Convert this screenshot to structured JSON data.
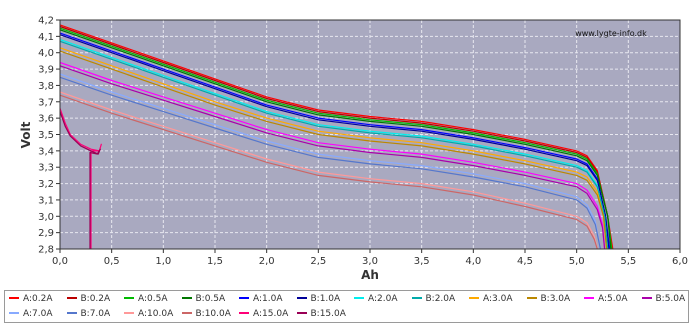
{
  "chart_data": {
    "type": "line",
    "title": "",
    "watermark": "www.lygte-info.dk",
    "xlabel": "Ah",
    "ylabel": "Volt",
    "xlim": [
      0.0,
      6.0
    ],
    "ylim": [
      2.8,
      4.2
    ],
    "x_ticks": [
      "0,0",
      "0,5",
      "1,0",
      "1,5",
      "2,0",
      "2,5",
      "3,0",
      "3,5",
      "4,0",
      "4,5",
      "5,0",
      "5,5",
      "6,0"
    ],
    "y_ticks": [
      "2,8",
      "2,9",
      "3,0",
      "3,1",
      "3,2",
      "3,3",
      "3,4",
      "3,5",
      "3,6",
      "3,7",
      "3,8",
      "3,9",
      "4,0",
      "4,1",
      "4,2"
    ],
    "grid": true,
    "legend_position": "bottom",
    "series": [
      {
        "name": "A:0.2A",
        "color": "#ff0000",
        "points": [
          [
            0,
            4.17
          ],
          [
            0.5,
            4.06
          ],
          [
            1.0,
            3.95
          ],
          [
            1.5,
            3.84
          ],
          [
            2.0,
            3.73
          ],
          [
            2.5,
            3.65
          ],
          [
            3.0,
            3.61
          ],
          [
            3.5,
            3.58
          ],
          [
            4.0,
            3.53
          ],
          [
            4.5,
            3.47
          ],
          [
            5.0,
            3.4
          ],
          [
            5.1,
            3.37
          ],
          [
            5.2,
            3.28
          ],
          [
            5.3,
            3.0
          ],
          [
            5.35,
            2.8
          ]
        ]
      },
      {
        "name": "B:0.2A",
        "color": "#bb0000",
        "points": [
          [
            0,
            4.16
          ],
          [
            0.5,
            4.05
          ],
          [
            1.0,
            3.94
          ],
          [
            1.5,
            3.83
          ],
          [
            2.0,
            3.72
          ],
          [
            2.5,
            3.64
          ],
          [
            3.0,
            3.6
          ],
          [
            3.5,
            3.57
          ],
          [
            4.0,
            3.52
          ],
          [
            4.5,
            3.46
          ],
          [
            5.0,
            3.39
          ],
          [
            5.1,
            3.36
          ],
          [
            5.2,
            3.27
          ],
          [
            5.3,
            3.0
          ],
          [
            5.34,
            2.8
          ]
        ]
      },
      {
        "name": "A:0.5A",
        "color": "#00bb00",
        "points": [
          [
            0,
            4.15
          ],
          [
            0.5,
            4.04
          ],
          [
            1.0,
            3.93
          ],
          [
            1.5,
            3.82
          ],
          [
            2.0,
            3.71
          ],
          [
            2.5,
            3.63
          ],
          [
            3.0,
            3.59
          ],
          [
            3.5,
            3.56
          ],
          [
            4.0,
            3.51
          ],
          [
            4.5,
            3.45
          ],
          [
            5.0,
            3.38
          ],
          [
            5.1,
            3.35
          ],
          [
            5.2,
            3.26
          ],
          [
            5.3,
            3.0
          ],
          [
            5.34,
            2.8
          ]
        ]
      },
      {
        "name": "B:0.5A",
        "color": "#007700",
        "points": [
          [
            0,
            4.14
          ],
          [
            0.5,
            4.03
          ],
          [
            1.0,
            3.92
          ],
          [
            1.5,
            3.81
          ],
          [
            2.0,
            3.7
          ],
          [
            2.5,
            3.62
          ],
          [
            3.0,
            3.58
          ],
          [
            3.5,
            3.55
          ],
          [
            4.0,
            3.5
          ],
          [
            4.5,
            3.44
          ],
          [
            5.0,
            3.37
          ],
          [
            5.1,
            3.34
          ],
          [
            5.2,
            3.25
          ],
          [
            5.3,
            3.0
          ],
          [
            5.33,
            2.8
          ]
        ]
      },
      {
        "name": "A:1.0A",
        "color": "#0000ff",
        "points": [
          [
            0,
            4.12
          ],
          [
            0.5,
            4.01
          ],
          [
            1.0,
            3.9
          ],
          [
            1.5,
            3.79
          ],
          [
            2.0,
            3.68
          ],
          [
            2.5,
            3.6
          ],
          [
            3.0,
            3.56
          ],
          [
            3.5,
            3.53
          ],
          [
            4.0,
            3.48
          ],
          [
            4.5,
            3.42
          ],
          [
            5.0,
            3.35
          ],
          [
            5.1,
            3.32
          ],
          [
            5.2,
            3.23
          ],
          [
            5.28,
            3.0
          ],
          [
            5.32,
            2.8
          ]
        ]
      },
      {
        "name": "B:1.0A",
        "color": "#000099",
        "points": [
          [
            0,
            4.11
          ],
          [
            0.5,
            4.0
          ],
          [
            1.0,
            3.89
          ],
          [
            1.5,
            3.78
          ],
          [
            2.0,
            3.67
          ],
          [
            2.5,
            3.59
          ],
          [
            3.0,
            3.55
          ],
          [
            3.5,
            3.52
          ],
          [
            4.0,
            3.47
          ],
          [
            4.5,
            3.41
          ],
          [
            5.0,
            3.34
          ],
          [
            5.1,
            3.31
          ],
          [
            5.2,
            3.22
          ],
          [
            5.28,
            3.0
          ],
          [
            5.31,
            2.8
          ]
        ]
      },
      {
        "name": "A:2.0A",
        "color": "#00eeee",
        "points": [
          [
            0,
            4.08
          ],
          [
            0.5,
            3.97
          ],
          [
            1.0,
            3.86
          ],
          [
            1.5,
            3.75
          ],
          [
            2.0,
            3.64
          ],
          [
            2.5,
            3.56
          ],
          [
            3.0,
            3.52
          ],
          [
            3.5,
            3.49
          ],
          [
            4.0,
            3.44
          ],
          [
            4.5,
            3.38
          ],
          [
            5.0,
            3.31
          ],
          [
            5.1,
            3.28
          ],
          [
            5.2,
            3.19
          ],
          [
            5.27,
            3.0
          ],
          [
            5.3,
            2.8
          ]
        ]
      },
      {
        "name": "B:2.0A",
        "color": "#00aaaa",
        "points": [
          [
            0,
            4.07
          ],
          [
            0.5,
            3.96
          ],
          [
            1.0,
            3.85
          ],
          [
            1.5,
            3.74
          ],
          [
            2.0,
            3.63
          ],
          [
            2.5,
            3.55
          ],
          [
            3.0,
            3.51
          ],
          [
            3.5,
            3.48
          ],
          [
            4.0,
            3.43
          ],
          [
            4.5,
            3.37
          ],
          [
            5.0,
            3.3
          ],
          [
            5.1,
            3.27
          ],
          [
            5.2,
            3.18
          ],
          [
            5.27,
            3.0
          ],
          [
            5.3,
            2.8
          ]
        ]
      },
      {
        "name": "A:3.0A",
        "color": "#ffaa00",
        "points": [
          [
            0,
            4.03
          ],
          [
            0.5,
            3.92
          ],
          [
            1.0,
            3.81
          ],
          [
            1.5,
            3.7
          ],
          [
            2.0,
            3.6
          ],
          [
            2.5,
            3.52
          ],
          [
            3.0,
            3.48
          ],
          [
            3.5,
            3.45
          ],
          [
            4.0,
            3.4
          ],
          [
            4.5,
            3.34
          ],
          [
            5.0,
            3.27
          ],
          [
            5.1,
            3.24
          ],
          [
            5.2,
            3.15
          ],
          [
            5.26,
            3.0
          ],
          [
            5.29,
            2.8
          ]
        ]
      },
      {
        "name": "B:3.0A",
        "color": "#bb8800",
        "points": [
          [
            0,
            4.01
          ],
          [
            0.5,
            3.9
          ],
          [
            1.0,
            3.79
          ],
          [
            1.5,
            3.68
          ],
          [
            2.0,
            3.58
          ],
          [
            2.5,
            3.5
          ],
          [
            3.0,
            3.46
          ],
          [
            3.5,
            3.43
          ],
          [
            4.0,
            3.38
          ],
          [
            4.5,
            3.32
          ],
          [
            5.0,
            3.25
          ],
          [
            5.1,
            3.22
          ],
          [
            5.2,
            3.13
          ],
          [
            5.26,
            3.0
          ],
          [
            5.29,
            2.8
          ]
        ]
      },
      {
        "name": "A:5.0A",
        "color": "#ff00ff",
        "points": [
          [
            0,
            3.94
          ],
          [
            0.5,
            3.83
          ],
          [
            1.0,
            3.73
          ],
          [
            1.5,
            3.63
          ],
          [
            2.0,
            3.53
          ],
          [
            2.5,
            3.45
          ],
          [
            3.0,
            3.41
          ],
          [
            3.5,
            3.38
          ],
          [
            4.0,
            3.33
          ],
          [
            4.5,
            3.27
          ],
          [
            5.0,
            3.2
          ],
          [
            5.1,
            3.16
          ],
          [
            5.2,
            3.06
          ],
          [
            5.25,
            2.95
          ],
          [
            5.27,
            2.8
          ]
        ]
      },
      {
        "name": "B:5.0A",
        "color": "#aa00aa",
        "points": [
          [
            0,
            3.92
          ],
          [
            0.5,
            3.81
          ],
          [
            1.0,
            3.71
          ],
          [
            1.5,
            3.61
          ],
          [
            2.0,
            3.51
          ],
          [
            2.5,
            3.43
          ],
          [
            3.0,
            3.39
          ],
          [
            3.5,
            3.36
          ],
          [
            4.0,
            3.31
          ],
          [
            4.5,
            3.25
          ],
          [
            5.0,
            3.18
          ],
          [
            5.1,
            3.14
          ],
          [
            5.2,
            3.04
          ],
          [
            5.25,
            2.93
          ],
          [
            5.27,
            2.8
          ]
        ]
      },
      {
        "name": "A:7.0A",
        "color": "#88aaff",
        "points": [
          [
            0,
            3.87
          ],
          [
            0.5,
            3.76
          ],
          [
            1.0,
            3.66
          ],
          [
            1.5,
            3.56
          ],
          [
            2.0,
            3.46
          ],
          [
            2.5,
            3.38
          ],
          [
            3.0,
            3.34
          ],
          [
            3.5,
            3.31
          ],
          [
            4.0,
            3.26
          ],
          [
            4.5,
            3.2
          ],
          [
            5.0,
            3.12
          ],
          [
            5.1,
            3.07
          ],
          [
            5.18,
            2.97
          ],
          [
            5.23,
            2.8
          ]
        ]
      },
      {
        "name": "B:7.0A",
        "color": "#5577cc",
        "points": [
          [
            0,
            3.85
          ],
          [
            0.5,
            3.74
          ],
          [
            1.0,
            3.64
          ],
          [
            1.5,
            3.54
          ],
          [
            2.0,
            3.44
          ],
          [
            2.5,
            3.36
          ],
          [
            3.0,
            3.32
          ],
          [
            3.5,
            3.29
          ],
          [
            4.0,
            3.24
          ],
          [
            4.5,
            3.18
          ],
          [
            5.0,
            3.1
          ],
          [
            5.1,
            3.05
          ],
          [
            5.18,
            2.95
          ],
          [
            5.23,
            2.8
          ]
        ]
      },
      {
        "name": "A:10.0A",
        "color": "#ff9999",
        "points": [
          [
            0,
            3.76
          ],
          [
            0.5,
            3.65
          ],
          [
            1.0,
            3.55
          ],
          [
            1.5,
            3.45
          ],
          [
            2.0,
            3.35
          ],
          [
            2.5,
            3.27
          ],
          [
            3.0,
            3.23
          ],
          [
            3.5,
            3.2
          ],
          [
            4.0,
            3.15
          ],
          [
            4.5,
            3.08
          ],
          [
            5.0,
            3.0
          ],
          [
            5.1,
            2.96
          ],
          [
            5.17,
            2.88
          ],
          [
            5.2,
            2.8
          ]
        ]
      },
      {
        "name": "B:10.0A",
        "color": "#cc6666",
        "points": [
          [
            0,
            3.74
          ],
          [
            0.5,
            3.63
          ],
          [
            1.0,
            3.53
          ],
          [
            1.5,
            3.43
          ],
          [
            2.0,
            3.33
          ],
          [
            2.5,
            3.25
          ],
          [
            3.0,
            3.21
          ],
          [
            3.5,
            3.18
          ],
          [
            4.0,
            3.13
          ],
          [
            4.5,
            3.06
          ],
          [
            5.0,
            2.98
          ],
          [
            5.1,
            2.94
          ],
          [
            5.17,
            2.86
          ],
          [
            5.2,
            2.8
          ]
        ]
      },
      {
        "name": "A:15.0A",
        "color": "#ff0077",
        "points": [
          [
            0,
            3.66
          ],
          [
            0.05,
            3.57
          ],
          [
            0.1,
            3.5
          ],
          [
            0.2,
            3.44
          ],
          [
            0.3,
            3.41
          ],
          [
            0.38,
            3.4
          ],
          [
            0.4,
            3.44
          ],
          [
            0.38,
            3.4
          ],
          [
            0.3,
            3.4
          ],
          [
            0.3,
            2.8
          ]
        ]
      },
      {
        "name": "B:15.0A",
        "color": "#990055",
        "points": [
          [
            0,
            3.64
          ],
          [
            0.05,
            3.55
          ],
          [
            0.1,
            3.49
          ],
          [
            0.2,
            3.43
          ],
          [
            0.3,
            3.4
          ],
          [
            0.37,
            3.38
          ],
          [
            0.39,
            3.41
          ],
          [
            0.36,
            3.38
          ],
          [
            0.29,
            3.39
          ],
          [
            0.29,
            2.8
          ]
        ]
      }
    ]
  }
}
